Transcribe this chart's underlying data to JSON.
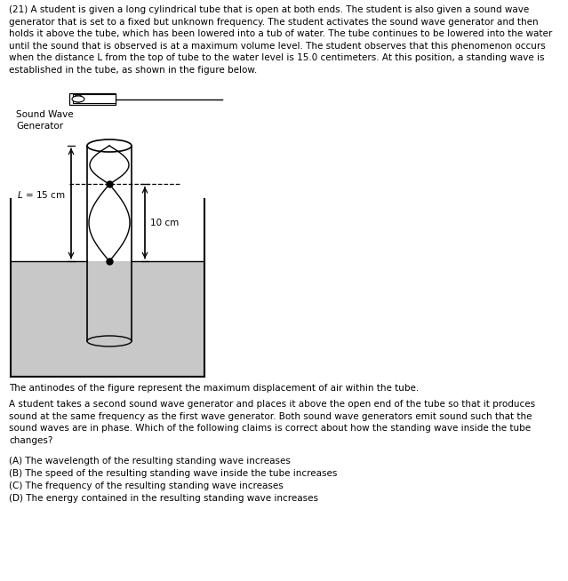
{
  "title_text": "(21) A student is given a long cylindrical tube that is open at both ends. The student is also given a sound wave\ngenerator that is set to a fixed but unknown frequency. The student activates the sound wave generator and then\nholds it above the tube, which has been lowered into a tub of water. The tube continues to be lowered into the water\nuntil the sound that is observed is at a maximum volume level. The student observes that this phenomenon occurs\nwhen the distance L from the top of tube to the water level is 15.0 centimeters. At this position, a standing wave is\nestablished in the tube, as shown in the figure below.",
  "caption1": "The antinodes of the figure represent the maximum displacement of air within the tube.",
  "body_text": "A student takes a second sound wave generator and places it above the open end of the tube so that it produces\nsound at the same frequency as the first wave generator. Both sound wave generators emit sound such that the\nsound waves are in phase. Which of the following claims is correct about how the standing wave inside the tube\nchanges?",
  "choices": [
    "(A) The wavelength of the resulting standing wave increases",
    "(B) The speed of the resulting standing wave inside the tube increases",
    "(C) The frequency of the resulting standing wave increases",
    "(D) The energy contained in the resulting standing wave increases"
  ],
  "bg_color": "#ffffff",
  "text_color": "#000000",
  "gray_color": "#c8c8c8",
  "font_size_body": 7.5,
  "font_size_label": 7.5
}
